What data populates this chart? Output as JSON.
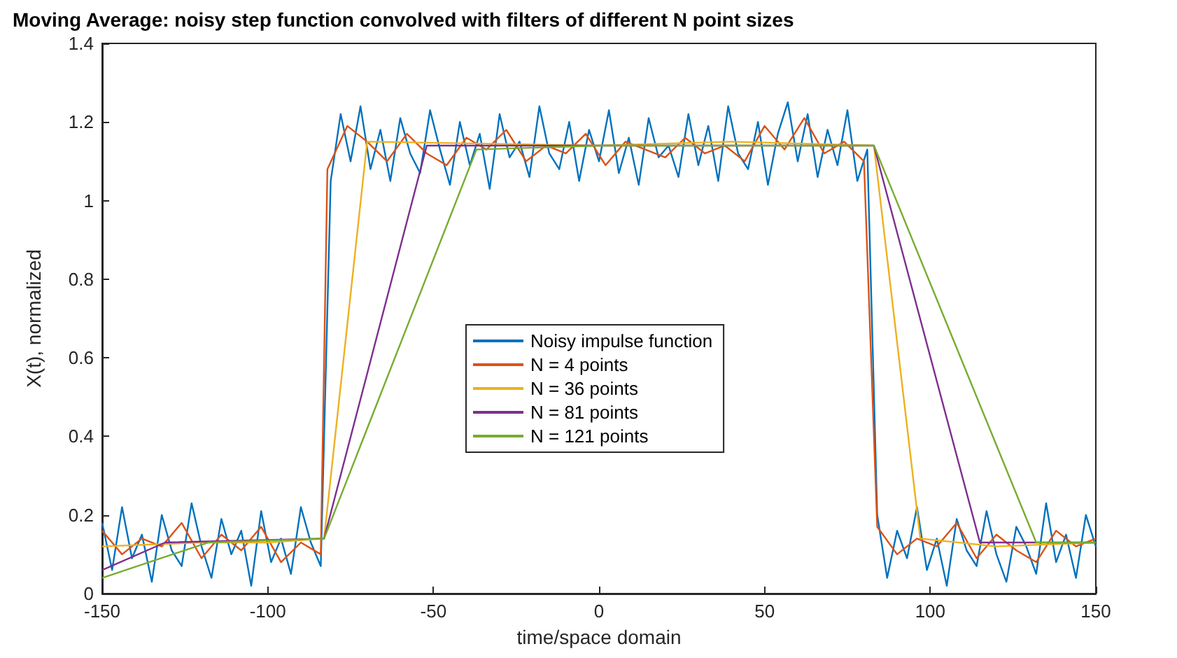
{
  "chart_data": {
    "type": "line",
    "title": "Moving Average: noisy step function convolved with filters of different N point sizes",
    "xlabel": "time/space domain",
    "ylabel": "X(t), normalized",
    "xlim": [
      -150,
      150
    ],
    "xticks": [
      -150,
      -100,
      -50,
      0,
      50,
      100,
      150
    ],
    "ylim": [
      0,
      1.4
    ],
    "yticks": [
      0,
      0.2,
      0.4,
      0.6,
      0.8,
      1,
      1.2,
      1.4
    ],
    "grid": false,
    "legend": "center",
    "marker": "none",
    "line_style": "solid",
    "series": [
      {
        "name": "Noisy impulse function",
        "color": "#0072bd",
        "x": [
          -150,
          -147,
          -144,
          -141,
          -138,
          -135,
          -132,
          -129,
          -126,
          -123,
          -120,
          -117,
          -114,
          -111,
          -108,
          -105,
          -102,
          -99,
          -96,
          -93,
          -90,
          -87,
          -84,
          -81,
          -78,
          -75,
          -72,
          -69,
          -66,
          -63,
          -60,
          -57,
          -54,
          -51,
          -48,
          -45,
          -42,
          -39,
          -36,
          -33,
          -30,
          -27,
          -24,
          -21,
          -18,
          -15,
          -12,
          -9,
          -6,
          -3,
          0,
          3,
          6,
          9,
          12,
          15,
          18,
          21,
          24,
          27,
          30,
          33,
          36,
          39,
          42,
          45,
          48,
          51,
          54,
          57,
          60,
          63,
          66,
          69,
          72,
          75,
          78,
          81,
          84,
          87,
          90,
          93,
          96,
          99,
          102,
          105,
          108,
          111,
          114,
          117,
          120,
          123,
          126,
          129,
          132,
          135,
          138,
          141,
          144,
          147,
          150
        ],
        "values": [
          0.18,
          0.06,
          0.22,
          0.09,
          0.15,
          0.03,
          0.2,
          0.11,
          0.07,
          0.23,
          0.12,
          0.04,
          0.19,
          0.1,
          0.16,
          0.02,
          0.21,
          0.08,
          0.14,
          0.05,
          0.22,
          0.13,
          0.07,
          1.05,
          1.22,
          1.1,
          1.24,
          1.08,
          1.18,
          1.05,
          1.21,
          1.12,
          1.07,
          1.23,
          1.13,
          1.04,
          1.2,
          1.09,
          1.17,
          1.03,
          1.22,
          1.11,
          1.15,
          1.06,
          1.24,
          1.12,
          1.08,
          1.2,
          1.05,
          1.18,
          1.1,
          1.23,
          1.07,
          1.16,
          1.04,
          1.21,
          1.11,
          1.14,
          1.06,
          1.22,
          1.09,
          1.19,
          1.05,
          1.24,
          1.12,
          1.08,
          1.2,
          1.04,
          1.17,
          1.25,
          1.1,
          1.22,
          1.06,
          1.18,
          1.09,
          1.23,
          1.05,
          1.13,
          0.2,
          0.04,
          0.16,
          0.09,
          0.22,
          0.06,
          0.14,
          0.02,
          0.19,
          0.11,
          0.07,
          0.21,
          0.1,
          0.03,
          0.17,
          0.12,
          0.05,
          0.23,
          0.08,
          0.15,
          0.04,
          0.2,
          0.12
        ]
      },
      {
        "name": "N = 4 points",
        "color": "#d95319",
        "x": [
          -150,
          -144,
          -138,
          -132,
          -126,
          -120,
          -114,
          -108,
          -102,
          -96,
          -90,
          -84,
          -82,
          -76,
          -70,
          -64,
          -58,
          -52,
          -46,
          -40,
          -34,
          -28,
          -22,
          -16,
          -10,
          -4,
          2,
          8,
          14,
          20,
          26,
          32,
          38,
          44,
          50,
          56,
          62,
          68,
          74,
          80,
          84,
          90,
          96,
          102,
          108,
          114,
          120,
          126,
          132,
          138,
          144,
          150
        ],
        "values": [
          0.16,
          0.1,
          0.14,
          0.12,
          0.18,
          0.09,
          0.15,
          0.11,
          0.17,
          0.08,
          0.13,
          0.1,
          1.08,
          1.19,
          1.15,
          1.1,
          1.17,
          1.12,
          1.09,
          1.16,
          1.13,
          1.18,
          1.1,
          1.14,
          1.12,
          1.17,
          1.09,
          1.15,
          1.13,
          1.11,
          1.16,
          1.12,
          1.14,
          1.1,
          1.19,
          1.13,
          1.21,
          1.12,
          1.15,
          1.1,
          0.17,
          0.1,
          0.14,
          0.12,
          0.18,
          0.09,
          0.15,
          0.11,
          0.08,
          0.16,
          0.12,
          0.14
        ]
      },
      {
        "name": "N = 36 points",
        "color": "#edb120",
        "x": [
          -150,
          -120,
          -100,
          -83,
          -70,
          0,
          40,
          83,
          97,
          120,
          150
        ],
        "values": [
          0.12,
          0.13,
          0.13,
          0.14,
          1.15,
          1.14,
          1.15,
          1.14,
          0.14,
          0.12,
          0.13
        ]
      },
      {
        "name": "N = 81 points",
        "color": "#7e2f8e",
        "x": [
          -150,
          -131,
          -83,
          -52,
          0,
          83,
          115,
          150
        ],
        "values": [
          0.06,
          0.13,
          0.14,
          1.14,
          1.14,
          1.14,
          0.13,
          0.13
        ]
      },
      {
        "name": "N = 121 points",
        "color": "#77ac30",
        "x": [
          -150,
          -118,
          -83,
          -37,
          0,
          83,
          132,
          150
        ],
        "values": [
          0.04,
          0.13,
          0.14,
          1.13,
          1.14,
          1.14,
          0.13,
          0.13
        ]
      }
    ]
  }
}
